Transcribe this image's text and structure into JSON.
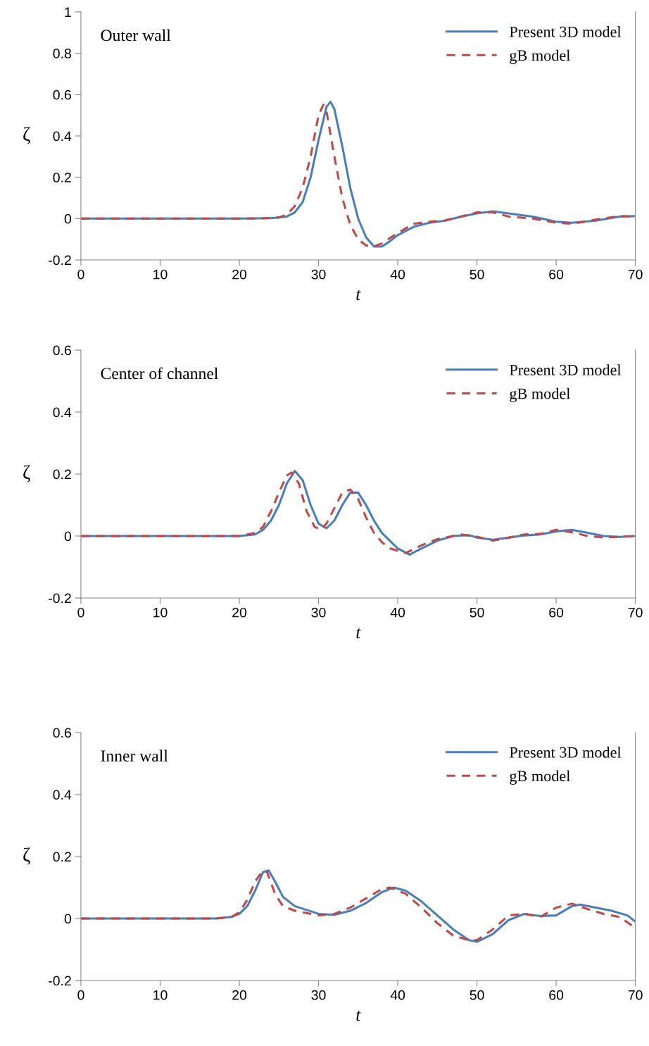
{
  "chart_data": [
    {
      "type": "line",
      "xlabel": "t",
      "ylabel": "ζ",
      "annotations": [
        "Outer wall"
      ],
      "legend": "top right",
      "grid": false,
      "xlim": [
        0,
        70
      ],
      "xticks": [
        0,
        10,
        20,
        30,
        40,
        50,
        60,
        70
      ],
      "ylim": [
        -0.2,
        1
      ],
      "yticks": [
        -0.2,
        0,
        0.2,
        0.4,
        0.6,
        0.8,
        1
      ],
      "series": [
        {
          "name": "Present 3D model",
          "color": "#4a7ebb",
          "line_style": "solid",
          "x": [
            0,
            20,
            24,
            26,
            27,
            28,
            29,
            30,
            31,
            31.5,
            32,
            33,
            34,
            35,
            36,
            37,
            38,
            39,
            40,
            42,
            44,
            46,
            48,
            50,
            52,
            54,
            57,
            60,
            62,
            65,
            68,
            70
          ],
          "values": [
            0,
            0,
            0.002,
            0.01,
            0.03,
            0.08,
            0.2,
            0.38,
            0.54,
            0.565,
            0.53,
            0.35,
            0.15,
            0.0,
            -0.09,
            -0.135,
            -0.135,
            -0.11,
            -0.08,
            -0.04,
            -0.02,
            -0.01,
            0.01,
            0.025,
            0.035,
            0.025,
            0.01,
            -0.015,
            -0.02,
            -0.01,
            0.01,
            0.012
          ]
        },
        {
          "name": "gB model",
          "color": "#be4b48",
          "line_style": "dashed",
          "x": [
            0,
            22,
            25,
            26,
            27,
            28,
            29,
            30,
            30.6,
            31,
            32,
            33,
            34,
            35,
            36,
            37,
            38,
            40,
            42,
            44,
            46,
            48,
            50,
            52,
            54,
            57,
            60,
            62,
            65,
            68,
            70
          ],
          "values": [
            0,
            0,
            0.005,
            0.02,
            0.06,
            0.15,
            0.3,
            0.5,
            0.55,
            0.52,
            0.3,
            0.1,
            -0.03,
            -0.1,
            -0.13,
            -0.135,
            -0.12,
            -0.07,
            -0.025,
            -0.015,
            -0.008,
            0.01,
            0.03,
            0.03,
            0.01,
            0.0,
            -0.02,
            -0.025,
            -0.005,
            0.012,
            0.01
          ]
        }
      ]
    },
    {
      "type": "line",
      "xlabel": "t",
      "ylabel": "ζ",
      "annotations": [
        "Center of channel"
      ],
      "legend": "top right",
      "grid": false,
      "xlim": [
        0,
        70
      ],
      "xticks": [
        0,
        10,
        20,
        30,
        40,
        50,
        60,
        70
      ],
      "ylim": [
        -0.2,
        0.6
      ],
      "yticks": [
        -0.2,
        0,
        0.2,
        0.4,
        0.6
      ],
      "series": [
        {
          "name": "Present 3D model",
          "color": "#4a7ebb",
          "line_style": "solid",
          "x": [
            0,
            20,
            22,
            23,
            24,
            25,
            26,
            27,
            28,
            29,
            30,
            31,
            32,
            33,
            34,
            35,
            36,
            37,
            38,
            40,
            41.5,
            43,
            45,
            47,
            49,
            50,
            52,
            54,
            56,
            58,
            60,
            62,
            64,
            66,
            68,
            70
          ],
          "values": [
            0,
            0,
            0.005,
            0.02,
            0.05,
            0.1,
            0.17,
            0.21,
            0.18,
            0.1,
            0.04,
            0.025,
            0.05,
            0.1,
            0.14,
            0.14,
            0.1,
            0.05,
            0.01,
            -0.04,
            -0.06,
            -0.04,
            -0.015,
            0.0,
            0.003,
            -0.005,
            -0.012,
            -0.005,
            0.002,
            0.005,
            0.015,
            0.02,
            0.01,
            0.0,
            -0.003,
            0
          ]
        },
        {
          "name": "gB model",
          "color": "#be4b48",
          "line_style": "dashed",
          "x": [
            0,
            20,
            22,
            23,
            24,
            25,
            26,
            26.6,
            27.5,
            28.5,
            29.5,
            30.3,
            31,
            32,
            33,
            34,
            35,
            36,
            37,
            38,
            39,
            41,
            43,
            45,
            48,
            50,
            52,
            54,
            56,
            58,
            60,
            62,
            64,
            66,
            70
          ],
          "values": [
            0,
            0,
            0.01,
            0.03,
            0.08,
            0.14,
            0.195,
            0.205,
            0.17,
            0.08,
            0.03,
            0.02,
            0.04,
            0.09,
            0.14,
            0.15,
            0.12,
            0.06,
            0.01,
            -0.02,
            -0.04,
            -0.055,
            -0.03,
            -0.01,
            0.005,
            -0.002,
            -0.015,
            -0.005,
            0.005,
            0.007,
            0.02,
            0.012,
            0.0,
            -0.005,
            0
          ]
        }
      ]
    },
    {
      "type": "line",
      "xlabel": "t",
      "ylabel": "ζ",
      "annotations": [
        "Inner wall"
      ],
      "legend": "top right",
      "grid": false,
      "xlim": [
        0,
        70
      ],
      "xticks": [
        0,
        10,
        20,
        30,
        40,
        50,
        60,
        70
      ],
      "ylim": [
        -0.2,
        0.6
      ],
      "yticks": [
        -0.2,
        0,
        0.2,
        0.4,
        0.6
      ],
      "series": [
        {
          "name": "Present 3D model",
          "color": "#4a7ebb",
          "line_style": "solid",
          "x": [
            0,
            17,
            19,
            20,
            21,
            22,
            23,
            23.7,
            24.5,
            25.5,
            27,
            30,
            32,
            34,
            36,
            38,
            39.5,
            41,
            43,
            45,
            47,
            49,
            50,
            52,
            54,
            56,
            58,
            60,
            62,
            63,
            65,
            67,
            69,
            70
          ],
          "values": [
            0,
            0,
            0.005,
            0.015,
            0.04,
            0.09,
            0.15,
            0.155,
            0.12,
            0.07,
            0.04,
            0.015,
            0.012,
            0.025,
            0.05,
            0.085,
            0.1,
            0.09,
            0.055,
            0.01,
            -0.035,
            -0.07,
            -0.075,
            -0.05,
            -0.005,
            0.015,
            0.008,
            0.01,
            0.04,
            0.045,
            0.035,
            0.025,
            0.01,
            -0.01
          ]
        },
        {
          "name": "gB model",
          "color": "#be4b48",
          "line_style": "dashed",
          "x": [
            0,
            17,
            19,
            20,
            21,
            22,
            23,
            23.5,
            24.5,
            25.5,
            27,
            30,
            32,
            34,
            36,
            38,
            39,
            41,
            43,
            45,
            47,
            49,
            50,
            52,
            54,
            56,
            58,
            60,
            62,
            64,
            66,
            68,
            70
          ],
          "values": [
            0,
            0,
            0.005,
            0.02,
            0.06,
            0.12,
            0.155,
            0.15,
            0.08,
            0.04,
            0.025,
            0.01,
            0.015,
            0.035,
            0.065,
            0.095,
            0.1,
            0.08,
            0.035,
            -0.015,
            -0.055,
            -0.07,
            -0.07,
            -0.035,
            0.01,
            0.015,
            0.005,
            0.035,
            0.048,
            0.03,
            0.015,
            0.005,
            -0.03
          ]
        }
      ]
    }
  ]
}
